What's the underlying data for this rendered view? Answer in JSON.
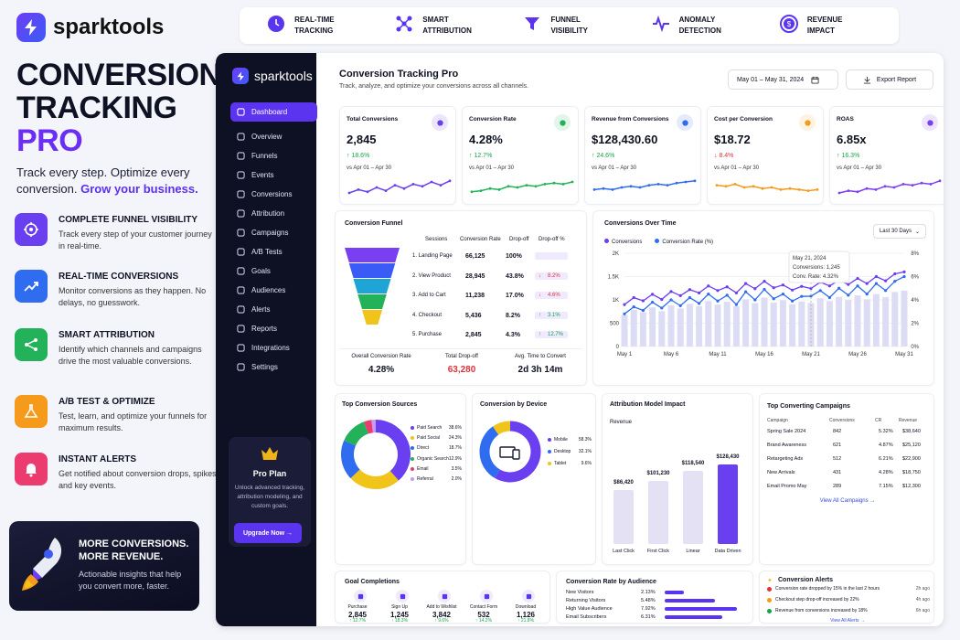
{
  "brand": {
    "name": "sparktools",
    "hero_line1": "CONVERSION",
    "hero_line2": "TRACKING",
    "hero_line3": "PRO",
    "tagline": "Track every step. Optimize every conversion.",
    "tagline_accent": "Grow your business."
  },
  "features": [
    {
      "title": "COMPLETE FUNNEL VISIBILITY",
      "desc": "Track every step of your customer journey in real-time.",
      "color": "#6a3ff0",
      "icon": "target-icon"
    },
    {
      "title": "REAL-TIME CONVERSIONS",
      "desc": "Monitor conversions as they happen. No delays, no guesswork.",
      "color": "#2f6cf0",
      "icon": "trend-icon"
    },
    {
      "title": "SMART ATTRIBUTION",
      "desc": "Identify which channels and campaigns drive the most valuable conversions.",
      "color": "#23b25a",
      "icon": "share-icon"
    },
    {
      "title": "A/B TEST & OPTIMIZE",
      "desc": "Test, learn, and optimize your funnels for maximum results.",
      "color": "#f59a1b",
      "icon": "flask-icon"
    },
    {
      "title": "INSTANT ALERTS",
      "desc": "Get notified about conversion drops, spikes, and key events.",
      "color": "#ec3b6e",
      "icon": "bell-icon"
    }
  ],
  "promo": {
    "line1": "MORE CONVERSIONS.",
    "line2": "MORE REVENUE.",
    "desc": "Actionable insights that help you convert more, faster."
  },
  "topstrip": [
    {
      "line1": "REAL-TIME",
      "line2": "TRACKING",
      "icon": "clock-icon"
    },
    {
      "line1": "SMART",
      "line2": "ATTRIBUTION",
      "icon": "network-icon"
    },
    {
      "line1": "FUNNEL",
      "line2": "VISIBILITY",
      "icon": "funnel-icon"
    },
    {
      "line1": "ANOMALY",
      "line2": "DETECTION",
      "icon": "pulse-icon"
    },
    {
      "line1": "REVENUE",
      "line2": "IMPACT",
      "icon": "dollar-icon"
    }
  ],
  "sidebar": {
    "brand": "sparktools",
    "items": [
      "Dashboard",
      "Overview",
      "Funnels",
      "Events",
      "Conversions",
      "Attribution",
      "Campaigns",
      "A/B Tests",
      "Goals",
      "Audiences",
      "Alerts",
      "Reports",
      "Integrations",
      "Settings"
    ],
    "pro_title": "Pro Plan",
    "pro_desc": "Unlock advanced tracking, attribution modeling, and custom goals.",
    "upgrade": "Upgrade Now →"
  },
  "header": {
    "title": "Conversion Tracking Pro",
    "subtitle": "Track, analyze, and optimize your conversions across all channels.",
    "date_range": "May 01 – May 31, 2024",
    "export": "Export Report"
  },
  "kpis": [
    {
      "label": "Total Conversions",
      "value": "2,845",
      "change": "↑ 18.6%",
      "dir": "up",
      "prev": "vs Apr 01 – Apr 30",
      "color": "#6a3ff0"
    },
    {
      "label": "Conversion Rate",
      "value": "4.28%",
      "change": "↑ 12.7%",
      "dir": "up",
      "prev": "vs Apr 01 – Apr 30",
      "color": "#23b25a"
    },
    {
      "label": "Revenue from Conversions",
      "value": "$128,430.60",
      "change": "↑ 24.6%",
      "dir": "up",
      "prev": "vs Apr 01 – Apr 30",
      "color": "#2f6cf0"
    },
    {
      "label": "Cost per Conversion",
      "value": "$18.72",
      "change": "↓ 8.4%",
      "dir": "down",
      "prev": "vs Apr 01 – Apr 30",
      "color": "#f59a1b"
    },
    {
      "label": "ROAS",
      "value": "6.85x",
      "change": "↑ 16.3%",
      "dir": "up",
      "prev": "vs Apr 01 – Apr 30",
      "color": "#7b3ff0"
    }
  ],
  "funnel": {
    "title": "Conversion Funnel",
    "headers": [
      "Sessions",
      "Conversion Rate",
      "Drop-off",
      "Drop-off %"
    ],
    "rows": [
      {
        "step": "1.  Landing Page",
        "sessions": "66,125",
        "rate": "100%",
        "drop": "",
        "droppct": ""
      },
      {
        "step": "2.  View Product",
        "sessions": "28,945",
        "rate": "43.8%",
        "drop": "↓",
        "droppct": "8.2%"
      },
      {
        "step": "3.  Add to Cart",
        "sessions": "11,238",
        "rate": "17.0%",
        "drop": "↓",
        "droppct": "4.6%"
      },
      {
        "step": "4.  Checkout",
        "sessions": "5,436",
        "rate": "8.2%",
        "drop": "↑",
        "droppct": "3.1%"
      },
      {
        "step": "5.  Purchase",
        "sessions": "2,845",
        "rate": "4.3%",
        "drop": "↑",
        "droppct": "12.7%"
      }
    ],
    "footer": [
      {
        "label": "Overall Conversion Rate",
        "value": "4.28%"
      },
      {
        "label": "Total Drop-off",
        "value": "63,280"
      },
      {
        "label": "Avg. Time to Convert",
        "value": "2d 3h 14m"
      }
    ]
  },
  "overtime": {
    "title": "Conversions Over Time",
    "range": "Last 30 Days",
    "legend1": "Conversions",
    "legend2": "Conversion Rate (%)",
    "yleft": [
      "2K",
      "1.5K",
      "1K",
      "500",
      "0"
    ],
    "yright": [
      "8%",
      "6%",
      "4%",
      "2%",
      "0%"
    ],
    "xlabels": [
      "May 1",
      "May 6",
      "May 11",
      "May 16",
      "May 21",
      "May 26",
      "May 31"
    ],
    "tip_date": "May 21, 2024",
    "tip_conv": "Conversions: 1,245",
    "tip_rate": "Conv. Rate: 4.32%"
  },
  "chart_data": {
    "type": "line",
    "title": "Conversions Over Time",
    "x": [
      "May 1",
      "May 2",
      "May 3",
      "May 4",
      "May 5",
      "May 6",
      "May 7",
      "May 8",
      "May 9",
      "May 10",
      "May 11",
      "May 12",
      "May 13",
      "May 14",
      "May 15",
      "May 16",
      "May 17",
      "May 18",
      "May 19",
      "May 20",
      "May 21",
      "May 22",
      "May 23",
      "May 24",
      "May 25",
      "May 26",
      "May 27",
      "May 28",
      "May 29",
      "May 30",
      "May 31"
    ],
    "series": [
      {
        "name": "Conversions",
        "values": [
          900,
          1050,
          980,
          1120,
          1010,
          1180,
          1090,
          1220,
          1150,
          1300,
          1200,
          1280,
          1150,
          1350,
          1240,
          1400,
          1260,
          1320,
          1210,
          1290,
          1245,
          1380,
          1300,
          1420,
          1330,
          1460,
          1350,
          1500,
          1410,
          1560,
          1600
        ]
      },
      {
        "name": "Conversion Rate (%)",
        "values": [
          2.8,
          3.4,
          3.1,
          3.8,
          3.3,
          4.0,
          3.5,
          4.2,
          3.7,
          4.5,
          3.9,
          4.4,
          3.6,
          4.7,
          4.0,
          4.9,
          4.1,
          4.5,
          3.9,
          4.3,
          4.32,
          4.8,
          4.2,
          5.0,
          4.4,
          5.2,
          4.5,
          5.4,
          4.8,
          5.6,
          6.0
        ]
      }
    ],
    "ylim": [
      0,
      2000
    ]
  },
  "sources": {
    "title": "Top Conversion Sources",
    "items": [
      {
        "name": "Paid Search",
        "pct": "38.6%",
        "v": 38.6,
        "color": "#6a3ff0"
      },
      {
        "name": "Paid Social",
        "pct": "24.3%",
        "v": 24.3,
        "color": "#f0c419"
      },
      {
        "name": "Direct",
        "pct": "18.7%",
        "v": 18.7,
        "color": "#2f6cf0"
      },
      {
        "name": "Organic Search",
        "pct": "12.9%",
        "v": 12.9,
        "color": "#23b25a"
      },
      {
        "name": "Email",
        "pct": "3.5%",
        "v": 3.5,
        "color": "#ec3b6e"
      },
      {
        "name": "Referral",
        "pct": "2.0%",
        "v": 2.0,
        "color": "#c39cf5"
      }
    ]
  },
  "device": {
    "title": "Conversion by Device",
    "items": [
      {
        "name": "Mobile",
        "pct": "58.3%",
        "v": 58.3,
        "color": "#6a3ff0"
      },
      {
        "name": "Desktop",
        "pct": "32.1%",
        "v": 32.1,
        "color": "#2f6cf0"
      },
      {
        "name": "Tablet",
        "pct": "9.6%",
        "v": 9.6,
        "color": "#f0c419"
      }
    ]
  },
  "attribution": {
    "title": "Attribution Model Impact",
    "ylabel": "Revenue",
    "bars": [
      {
        "name": "Last Click",
        "value": "$86,420",
        "v": 86420
      },
      {
        "name": "First Click",
        "value": "$101,230",
        "v": 101230
      },
      {
        "name": "Linear",
        "value": "$118,540",
        "v": 118540
      },
      {
        "name": "Data Driven",
        "value": "$128,430",
        "v": 128430
      }
    ]
  },
  "campaigns": {
    "title": "Top Converting Campaigns",
    "headers": [
      "Campaign",
      "Conversions",
      "CR",
      "Revenue"
    ],
    "rows": [
      [
        "Spring Sale 2024",
        "842",
        "5.32%",
        "$38,640"
      ],
      [
        "Brand Awareness",
        "621",
        "4.87%",
        "$25,120"
      ],
      [
        "Retargeting Ads",
        "512",
        "6.21%",
        "$22,900"
      ],
      [
        "New Arrivals",
        "431",
        "4.28%",
        "$18,750"
      ],
      [
        "Email Promo May",
        "289",
        "7.15%",
        "$12,300"
      ]
    ],
    "link": "View All Campaigns →"
  },
  "goals": {
    "title": "Goal Completions",
    "items": [
      {
        "name": "Purchase",
        "value": "2,845",
        "change": "↑ 12.7%",
        "icon": "bag-icon"
      },
      {
        "name": "Sign Up",
        "value": "1,245",
        "change": "↑ 18.3%",
        "icon": "user-icon"
      },
      {
        "name": "Add to Wishlist",
        "value": "3,842",
        "change": "↑ 9.6%",
        "icon": "heart-icon"
      },
      {
        "name": "Contact Form",
        "value": "532",
        "change": "↑ 14.2%",
        "icon": "form-icon"
      },
      {
        "name": "Download",
        "value": "1,126",
        "change": "↑ 21.8%",
        "icon": "download-icon"
      }
    ]
  },
  "audience": {
    "title": "Conversion Rate by Audience",
    "items": [
      {
        "name": "New Visitors",
        "pct": "2.13%",
        "v": 2.13
      },
      {
        "name": "Returning Visitors",
        "pct": "5.48%",
        "v": 5.48
      },
      {
        "name": "High Value Audience",
        "pct": "7.92%",
        "v": 7.92
      },
      {
        "name": "Email Subscribers",
        "pct": "6.31%",
        "v": 6.31
      }
    ]
  },
  "alerts": {
    "title": "Conversion Alerts",
    "items": [
      {
        "text": "Conversion rate dropped by 15% in the last 2 hours",
        "time": "2h ago",
        "color": "#e0333a"
      },
      {
        "text": "Checkout step drop-off increased by 22%",
        "time": "4h ago",
        "color": "#f59a1b"
      },
      {
        "text": "Revenue from conversions increased by 18%",
        "time": "6h ago",
        "color": "#17a34a"
      }
    ],
    "link": "View All Alerts →"
  }
}
